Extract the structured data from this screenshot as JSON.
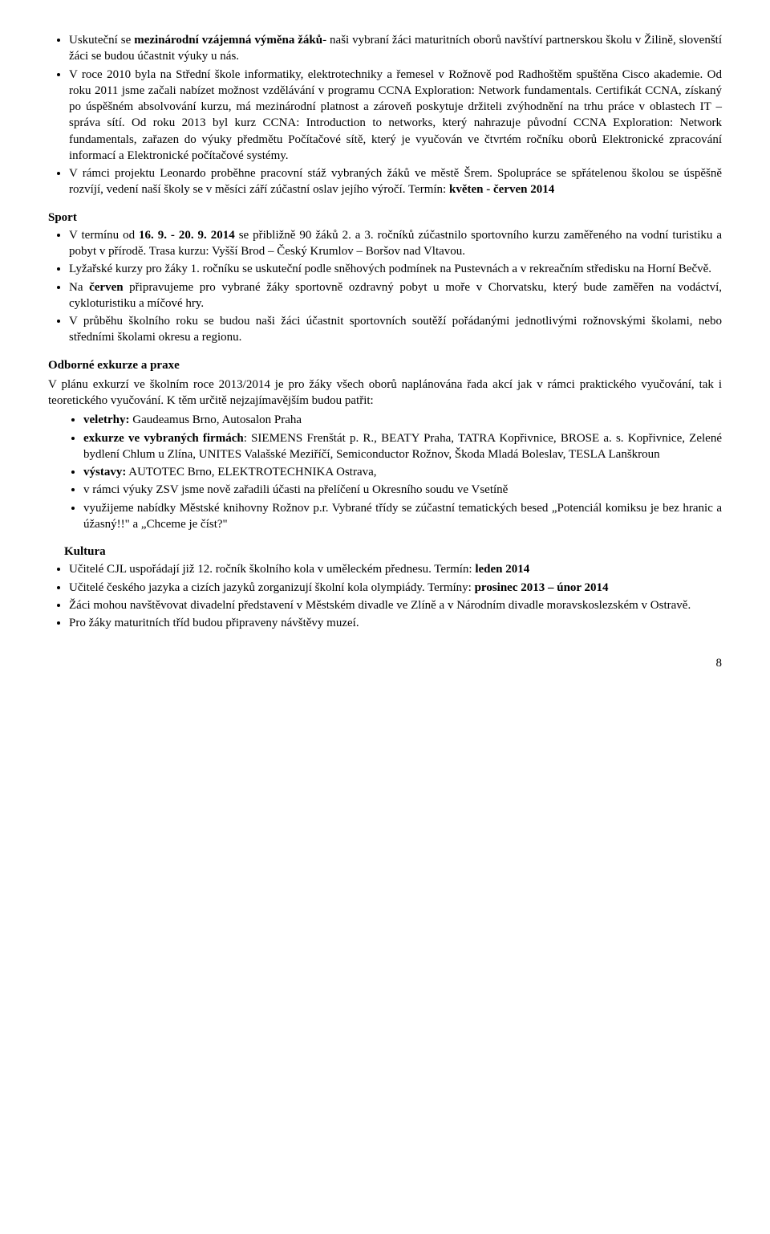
{
  "top_bullets": [
    {
      "html": "Uskuteční se <b>mezinárodní vzájemná výměna žáků</b>- naši vybraní žáci maturitních oborů navštíví partnerskou školu v Žilině, slovenští žáci se budou účastnit výuky u nás."
    },
    {
      "html": "V roce 2010 byla na Střední škole informatiky, elektrotechniky a řemesel v Rožnově pod Radhoštěm spuštěna Cisco akademie. Od roku 2011 jsme začali nabízet možnost vzdělávání v programu CCNA Exploration: Network fundamentals. Certifikát CCNA, získaný po úspěšném absolvování kurzu, má mezinárodní platnost a zároveň poskytuje držiteli zvýhodnění na trhu práce v oblastech IT – správa sítí. Od roku 2013 byl kurz CCNA: Introduction to networks, který nahrazuje původní CCNA Exploration: Network fundamentals, zařazen do výuky předmětu Počítačové sítě, který je vyučován ve čtvrtém ročníku oborů Elektronické zpracování informací a Elektronické počítačové systémy."
    },
    {
      "html": "V rámci projektu Leonardo proběhne pracovní stáž vybraných žáků ve městě Šrem. Spolupráce se spřátelenou školou se úspěšně rozvíjí, vedení naší školy se v měsíci září zúčastní oslav jejího výročí. Termín: <b>květen - červen 2014</b>"
    }
  ],
  "sport": {
    "title": "Sport",
    "bullets": [
      {
        "html": "V termínu od <b>16. 9. - 20. 9. 2014</b> se přibližně 90 žáků 2. a 3. ročníků zúčastnilo sportovního kurzu zaměřeného na vodní turistiku a pobyt v přírodě. Trasa kurzu: Vyšší Brod – Český Krumlov – Boršov nad Vltavou."
      },
      {
        "html": "Lyžařské kurzy pro žáky 1. ročníku se uskuteční podle sněhových podmínek na Pustevnách a v rekreačním středisku na Horní Bečvě."
      },
      {
        "html": "Na <b>červen</b> připravujeme pro vybrané žáky sportovně ozdravný pobyt u moře v Chorvatsku, který bude zaměřen na vodáctví, cykloturistiku a míčové hry."
      },
      {
        "html": "V průběhu školního roku se budou naši žáci účastnit sportovních soutěží pořádanými jednotlivými rožnovskými školami, nebo středními školami okresu a regionu."
      }
    ]
  },
  "excursions": {
    "title": "Odborné exkurze a praxe",
    "intro": "V plánu exkurzí ve školním roce 2013/2014 je pro žáky všech oborů naplánována řada akcí jak v rámci praktického vyučování, tak i teoretického vyučování. K těm určitě nejzajímavějším budou patřit:",
    "bullets": [
      {
        "html": "<b>veletrhy:</b> Gaudeamus Brno, Autosalon Praha"
      },
      {
        "html": "<b>exkurze ve vybraných firmách</b>: SIEMENS Frenštát p. R., BEATY Praha, TATRA Kopřivnice, BROSE a. s. Kopřivnice, Zelené bydlení Chlum u Zlína, UNITES Valašské Meziříčí, Semiconductor Rožnov, Škoda Mladá Boleslav, TESLA Lanškroun"
      },
      {
        "html": "<b>výstavy:</b> AUTOTEC Brno, ELEKTROTECHNIKA Ostrava,"
      },
      {
        "html": "v rámci výuky ZSV jsme nově zařadili účasti na přelíčení u Okresního soudu ve Vsetíně"
      },
      {
        "html": "využijeme nabídky Městské knihovny Rožnov p.r. Vybrané třídy se zúčastní tematických besed „Potenciál komiksu je bez hranic a úžasný!!\" a „Chceme je číst?\""
      }
    ]
  },
  "culture": {
    "title": "Kultura",
    "bullets": [
      {
        "html": "Učitelé CJL uspořádají již 12. ročník školního kola v uměleckém přednesu. Termín: <b>leden 2014</b>"
      },
      {
        "html": "Učitelé českého jazyka a cizích jazyků zorganizují školní kola olympiády. Termíny: <b>prosinec 2013 – únor 2014</b>"
      },
      {
        "html": "Žáci mohou navštěvovat divadelní představení v Městském divadle ve Zlíně a v Národním divadle moravskoslezském v Ostravě."
      },
      {
        "html": "Pro žáky maturitních tříd budou připraveny návštěvy muzeí."
      }
    ]
  },
  "page_number": "8"
}
